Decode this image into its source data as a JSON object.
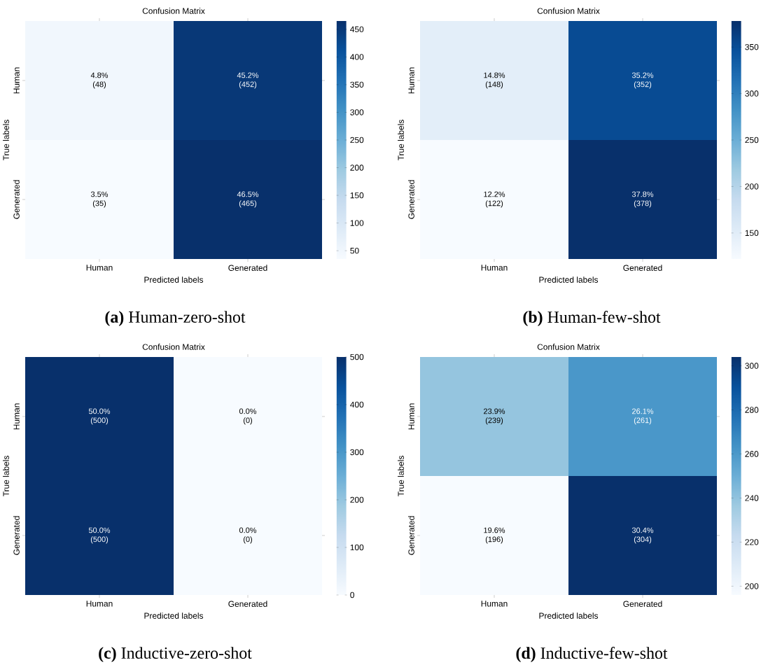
{
  "chart_data": [
    {
      "type": "heatmap",
      "title": "Confusion Matrix",
      "xlabel": "Predicted labels",
      "ylabel": "True labels",
      "categories": [
        "Human",
        "Generated"
      ],
      "y_categories": [
        "Human",
        "Generated"
      ],
      "cells": [
        [
          48,
          452
        ],
        [
          35,
          465
        ]
      ],
      "cell_labels": [
        [
          "4.8% (48)",
          "45.2% (452)"
        ],
        [
          "3.5% (35)",
          "46.5% (465)"
        ]
      ],
      "clim": [
        35,
        465
      ],
      "cticks": [
        50,
        100,
        150,
        200,
        250,
        300,
        350,
        400,
        450
      ],
      "annotations": [
        "**(a)** Human-zero-shot"
      ]
    },
    {
      "type": "heatmap",
      "title": "Confusion Matrix",
      "xlabel": "Predicted labels",
      "ylabel": "True labels",
      "categories": [
        "Human",
        "Generated"
      ],
      "y_categories": [
        "Human",
        "Generated"
      ],
      "cells": [
        [
          148,
          352
        ],
        [
          122,
          378
        ]
      ],
      "cell_labels": [
        [
          "14.8% (148)",
          "35.2% (352)"
        ],
        [
          "12.2% (122)",
          "37.8% (378)"
        ]
      ],
      "clim": [
        122,
        378
      ],
      "cticks": [
        150,
        200,
        250,
        300,
        350
      ],
      "annotations": [
        "**(b)** Human-few-shot"
      ]
    },
    {
      "type": "heatmap",
      "title": "Confusion Matrix",
      "xlabel": "Predicted labels",
      "ylabel": "True labels",
      "categories": [
        "Human",
        "Generated"
      ],
      "y_categories": [
        "Human",
        "Generated"
      ],
      "cells": [
        [
          500,
          0
        ],
        [
          500,
          0
        ]
      ],
      "cell_labels": [
        [
          "50.0% (500)",
          "0.0% (0)"
        ],
        [
          "50.0% (500)",
          "0.0% (0)"
        ]
      ],
      "clim": [
        0,
        500
      ],
      "cticks": [
        0,
        100,
        200,
        300,
        400,
        500
      ],
      "annotations": [
        "**(c)** Inductive-zero-shot"
      ]
    },
    {
      "type": "heatmap",
      "title": "Confusion Matrix",
      "xlabel": "Predicted labels",
      "ylabel": "True labels",
      "categories": [
        "Human",
        "Generated"
      ],
      "y_categories": [
        "Human",
        "Generated"
      ],
      "cells": [
        [
          239,
          261
        ],
        [
          196,
          304
        ]
      ],
      "cell_labels": [
        [
          "23.9% (239)",
          "26.1% (261)"
        ],
        [
          "19.6% (196)",
          "30.4% (304)"
        ]
      ],
      "clim": [
        196,
        304
      ],
      "cticks": [
        200,
        220,
        240,
        260,
        280,
        300
      ],
      "annotations": [
        "**(d)** Inductive-few-shot"
      ]
    }
  ]
}
